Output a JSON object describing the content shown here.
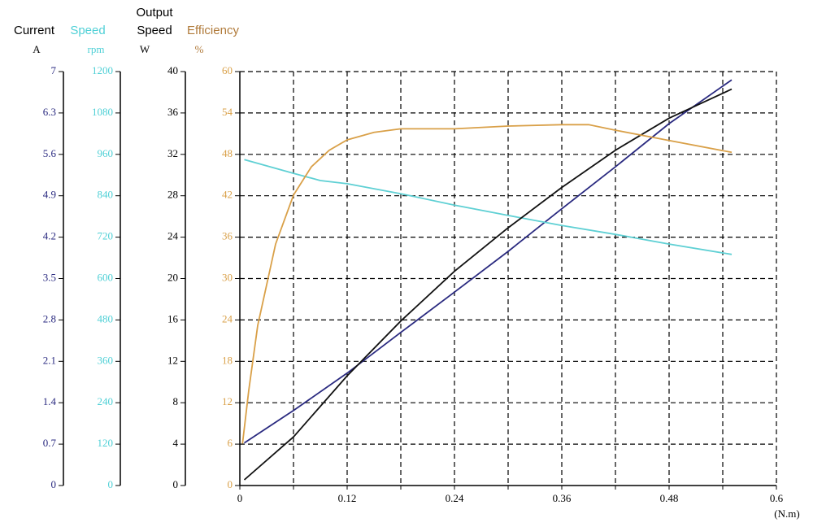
{
  "chart_data": {
    "type": "line",
    "x_label": "(N.m)",
    "xlim": [
      0,
      0.6
    ],
    "xticks": [
      0,
      {
        "value": 0.06,
        "label": null
      },
      0.12,
      {
        "value": 0.18,
        "label": null
      },
      0.24,
      {
        "value": 0.3,
        "label": null
      },
      0.36,
      {
        "value": 0.42,
        "label": null
      },
      0.48,
      {
        "value": 0.54,
        "label": null
      },
      0.6
    ],
    "grid": true,
    "y_axes": [
      {
        "label": [
          "Current"
        ],
        "unit": "A",
        "color": "#2a2a80",
        "label_color": "#000000",
        "ylim": [
          0,
          7
        ],
        "yticks": [
          0,
          0.7,
          1.4,
          2.1,
          2.8,
          3.5,
          4.2,
          4.9,
          5.6,
          6.3,
          7
        ]
      },
      {
        "label": [
          "Speed"
        ],
        "unit": "rpm",
        "color": "#4fd0d6",
        "label_color": "#4fd0d6",
        "ylim": [
          0,
          1200
        ],
        "yticks": [
          0,
          120,
          240,
          360,
          480,
          600,
          720,
          840,
          960,
          1080,
          1200
        ]
      },
      {
        "label": [
          "Output",
          "Speed"
        ],
        "unit": "W",
        "color": "#000000",
        "label_color": "#000000",
        "ylim": [
          0,
          40
        ],
        "yticks": [
          0,
          4,
          8,
          12,
          16,
          20,
          24,
          28,
          32,
          36,
          40
        ]
      },
      {
        "label": [
          "Efficiency"
        ],
        "unit": "%",
        "color": "#d9a048",
        "label_color": "#b07a3a",
        "ylim": [
          0,
          60
        ],
        "yticks": [
          0,
          6,
          12,
          18,
          24,
          30,
          36,
          42,
          48,
          54,
          60
        ]
      }
    ],
    "series": [
      {
        "axis": 0,
        "color": "#2a2a80",
        "x": [
          0.005,
          0.06,
          0.12,
          0.18,
          0.24,
          0.3,
          0.36,
          0.42,
          0.48,
          0.55
        ],
        "values": [
          0.72,
          1.27,
          1.9,
          2.59,
          3.27,
          3.96,
          4.68,
          5.39,
          6.12,
          6.86
        ]
      },
      {
        "axis": 1,
        "color": "#5fd0d4",
        "x": [
          0.005,
          0.06,
          0.09,
          0.12,
          0.18,
          0.24,
          0.3,
          0.36,
          0.42,
          0.48,
          0.55
        ],
        "values": [
          945,
          905,
          884,
          875,
          846,
          813,
          783,
          754,
          728,
          700,
          670
        ]
      },
      {
        "axis": 2,
        "color": "#111111",
        "x": [
          0.005,
          0.06,
          0.12,
          0.18,
          0.24,
          0.3,
          0.36,
          0.42,
          0.48,
          0.55
        ],
        "values": [
          0.55,
          4.7,
          10.6,
          15.9,
          20.7,
          24.9,
          28.8,
          32.4,
          35.5,
          38.3
        ]
      },
      {
        "axis": 3,
        "color": "#d9a048",
        "x": [
          0.003,
          0.01,
          0.02,
          0.04,
          0.06,
          0.08,
          0.1,
          0.12,
          0.15,
          0.18,
          0.24,
          0.3,
          0.36,
          0.39,
          0.42,
          0.48,
          0.55
        ],
        "values": [
          6.1,
          13.8,
          23.2,
          35,
          42.1,
          46.2,
          48.6,
          50.1,
          51.2,
          51.7,
          51.7,
          52.1,
          52.3,
          52.3,
          51.5,
          50,
          48.3
        ]
      }
    ]
  }
}
